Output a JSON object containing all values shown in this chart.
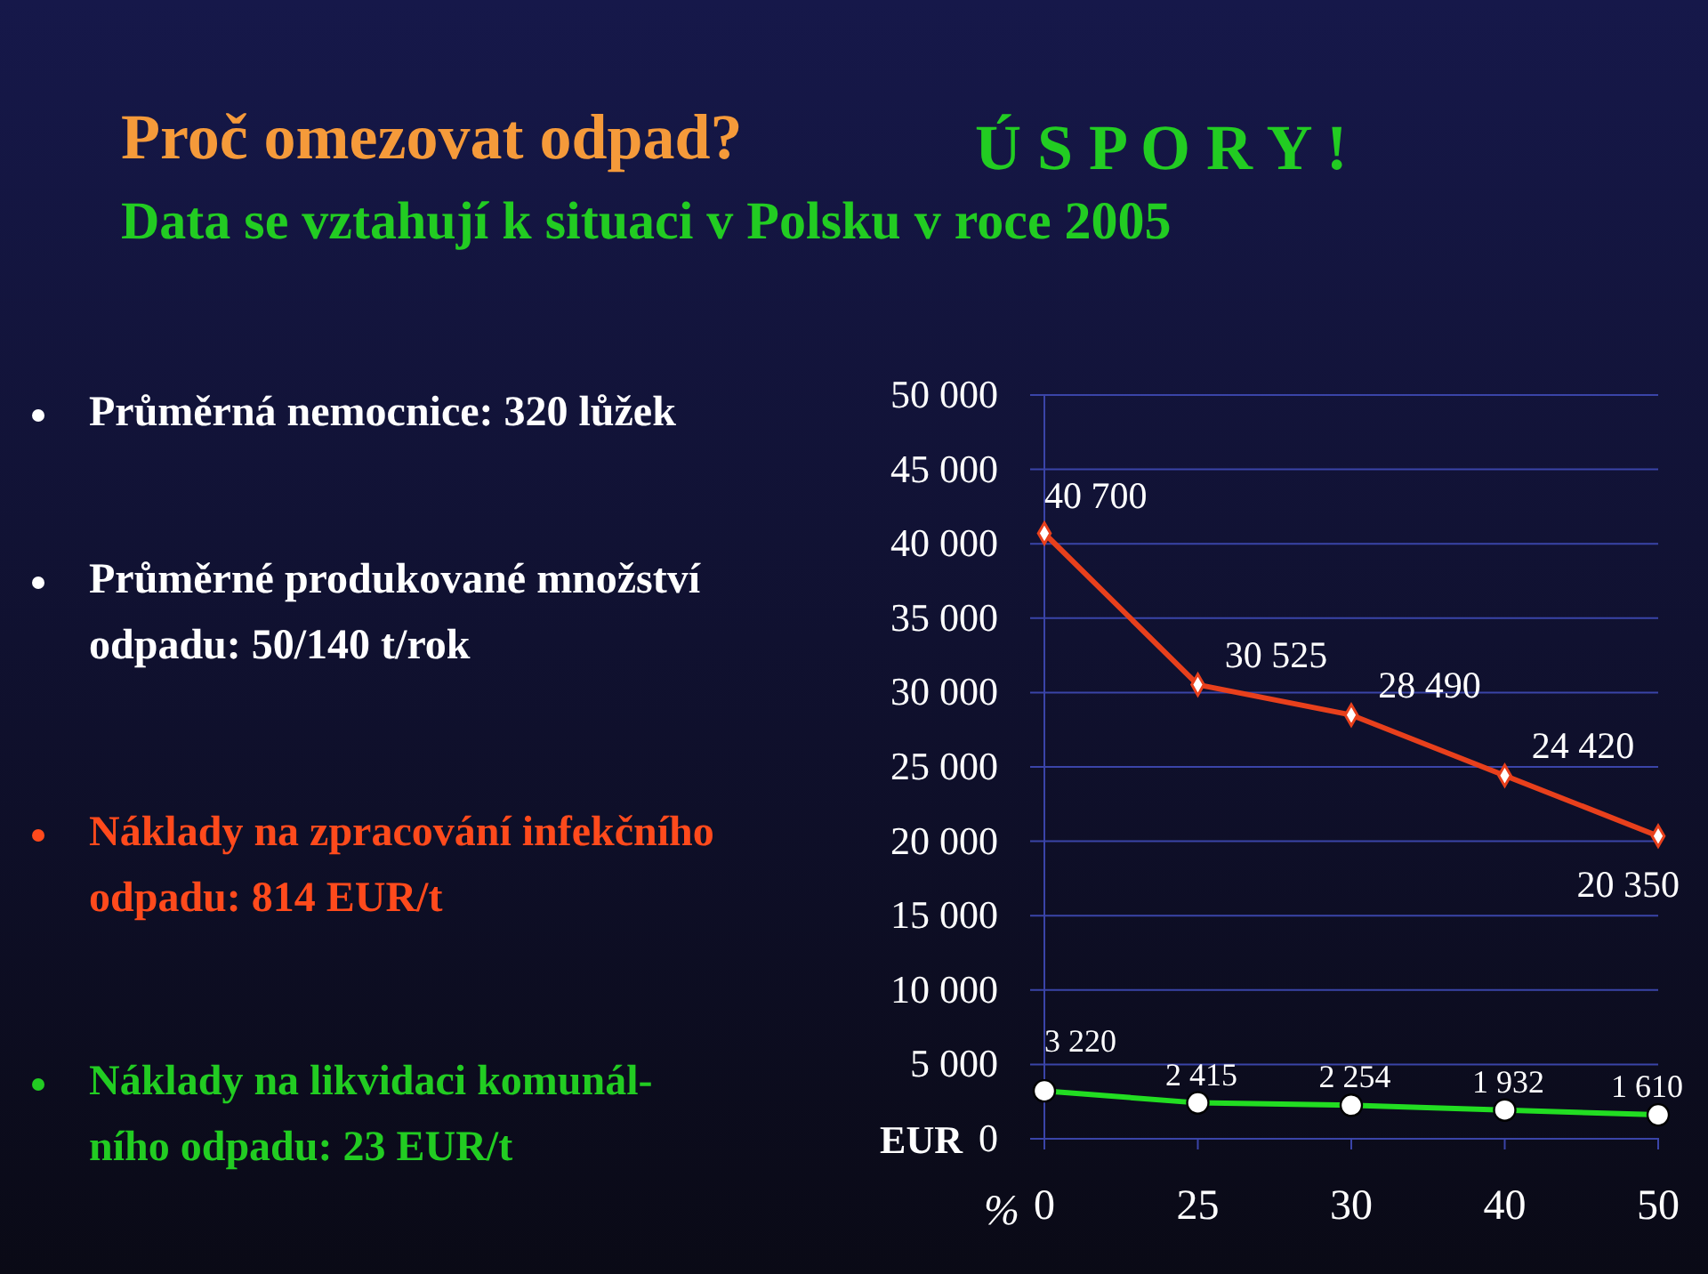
{
  "chart_data": {
    "type": "line",
    "title": "Proč omezovat odpad?",
    "subtitle": "Data se vztahují k situaci v Polsku v roce 2005",
    "annotations": [
      "Ú S P O R Y !",
      "Průměrná nemocnice: 320 lůžek",
      "Průměrné produkované množství\nodpadu: 50/140 t/rok",
      "Náklady na zpracování infekčního\nodpadu: 814 EUR/t",
      "Náklady na likvidaci komunál-\nního odpadu: 23 EUR/t"
    ],
    "xlabel": "%",
    "ylabel": "EUR",
    "categories": [
      "0",
      "25",
      "30",
      "40",
      "50"
    ],
    "series": [
      {
        "color": "#e8401c",
        "marker": "diamond",
        "values": [
          40700,
          30525,
          28490,
          24420,
          20350
        ]
      },
      {
        "color": "#22dd22",
        "marker": "circle",
        "values": [
          3220,
          2415,
          2254,
          1932,
          1610
        ]
      }
    ],
    "ylim": [
      0,
      50000
    ],
    "yticks": [
      {
        "value": 0,
        "label": "0"
      },
      {
        "value": 5000,
        "label": "5 000"
      },
      {
        "value": 10000,
        "label": "10 000"
      },
      {
        "value": 15000,
        "label": "15 000"
      },
      {
        "value": 20000,
        "label": "20 000"
      },
      {
        "value": 25000,
        "label": "25 000"
      },
      {
        "value": 30000,
        "label": "30 000"
      },
      {
        "value": 35000,
        "label": "35 000"
      },
      {
        "value": 40000,
        "label": "40 000"
      },
      {
        "value": 45000,
        "label": "45 000"
      },
      {
        "value": 50000,
        "label": "50 000"
      }
    ],
    "grid": "y",
    "data_labels": true
  }
}
